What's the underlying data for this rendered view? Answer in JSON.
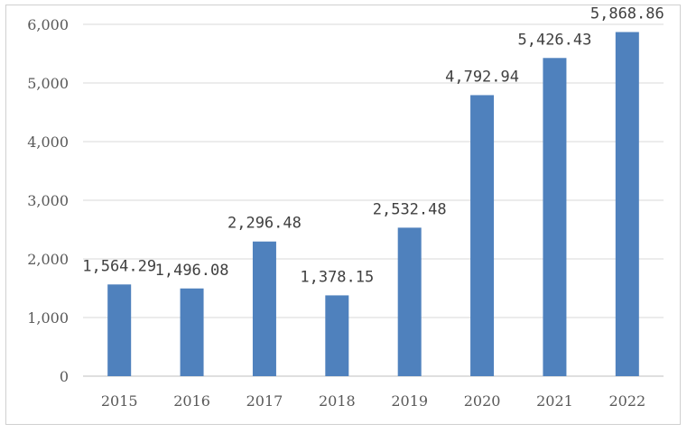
{
  "chart_data": {
    "type": "bar",
    "categories": [
      "2015",
      "2016",
      "2017",
      "2018",
      "2019",
      "2020",
      "2021",
      "2022"
    ],
    "values": [
      1564.29,
      1496.08,
      2296.48,
      1378.15,
      2532.48,
      4792.94,
      5426.43,
      5868.86
    ],
    "value_labels": [
      "1,564.29",
      "1,496.08",
      "2,296.48",
      "1,378.15",
      "2,532.48",
      "4,792.94",
      "5,426.43",
      "5,868.86"
    ],
    "title": "",
    "xlabel": "",
    "ylabel": "",
    "ylim": [
      0,
      6000
    ],
    "yticks": [
      0,
      1000,
      2000,
      3000,
      4000,
      5000,
      6000
    ],
    "ytick_labels": [
      "0",
      "1,000",
      "2,000",
      "3,000",
      "4,000",
      "5,000",
      "6,000"
    ],
    "grid": true,
    "legend": "none",
    "bar_color": "#4f81bd"
  }
}
